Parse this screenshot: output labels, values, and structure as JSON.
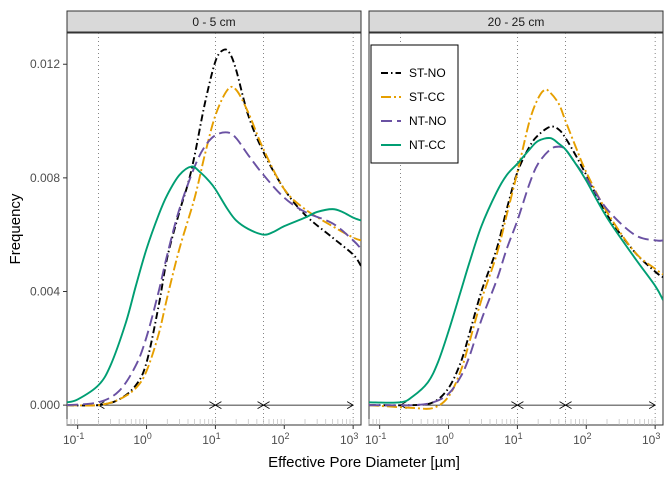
{
  "chart_data": {
    "type": "line",
    "xlabel": "Effective Pore Diameter [µm]",
    "ylabel": "Frequency",
    "x_scale": "log10",
    "xlim": [
      0.07,
      1300
    ],
    "ylim": [
      -0.0007,
      0.0131
    ],
    "x_ticks": [
      {
        "value": 0.1,
        "base": "10",
        "exp": "-1"
      },
      {
        "value": 1,
        "base": "10",
        "exp": "0"
      },
      {
        "value": 10,
        "base": "10",
        "exp": "1"
      },
      {
        "value": 100,
        "base": "10",
        "exp": "2"
      },
      {
        "value": 1000,
        "base": "10",
        "exp": "3"
      }
    ],
    "y_ticks": [
      {
        "value": 0.0,
        "label": "0.000"
      },
      {
        "value": 0.004,
        "label": "0.004"
      },
      {
        "value": 0.008,
        "label": "0.008"
      },
      {
        "value": 0.012,
        "label": "0.012"
      }
    ],
    "reference_lines_x": [
      0.2,
      10,
      50,
      1000
    ],
    "pore_class_arrows": [
      [
        0.2,
        10
      ],
      [
        10,
        50
      ],
      [
        50,
        1000
      ]
    ],
    "grid": false,
    "legend": {
      "panel": "20 - 25 cm",
      "position": "top-left",
      "entries": [
        {
          "name": "ST-NO",
          "color": "#000000",
          "dash": "dashdot"
        },
        {
          "name": "ST-CC",
          "color": "#E69F00",
          "dash": "longdash-dot"
        },
        {
          "name": "NT-NO",
          "color": "#6A51A3",
          "dash": "longdash"
        },
        {
          "name": "NT-CC",
          "color": "#009E73",
          "dash": "solid"
        }
      ]
    },
    "panels": [
      {
        "title": "0 - 5 cm",
        "series": [
          {
            "name": "ST-NO",
            "x": [
              0.07,
              0.2,
              0.4,
              0.7,
              1,
              1.5,
              2,
              3,
              4,
              5,
              7,
              10,
              13,
              16,
              20,
              30,
              50,
              100,
              200,
              500,
              1000,
              1300
            ],
            "y": [
              0.0,
              0.0,
              0.0002,
              0.0007,
              0.0015,
              0.0035,
              0.0052,
              0.0068,
              0.0078,
              0.0088,
              0.0106,
              0.0121,
              0.0125,
              0.0124,
              0.0118,
              0.0102,
              0.0089,
              0.0076,
              0.0067,
              0.0059,
              0.0053,
              0.0049
            ]
          },
          {
            "name": "ST-CC",
            "x": [
              0.07,
              0.2,
              0.4,
              0.7,
              1,
              1.5,
              2,
              3,
              5,
              7,
              10,
              15,
              20,
              30,
              50,
              100,
              200,
              500,
              1000,
              1300
            ],
            "y": [
              0.0,
              0.0,
              0.0002,
              0.0006,
              0.0012,
              0.0025,
              0.0038,
              0.0055,
              0.0073,
              0.0088,
              0.0102,
              0.0111,
              0.0111,
              0.0103,
              0.009,
              0.0076,
              0.0069,
              0.0063,
              0.0059,
              0.0058
            ]
          },
          {
            "name": "NT-NO",
            "x": [
              0.07,
              0.2,
              0.4,
              0.7,
              1,
              1.5,
              2,
              3,
              5,
              7,
              10,
              15,
              20,
              30,
              50,
              100,
              200,
              500,
              1000,
              1300
            ],
            "y": [
              0.0,
              0.0001,
              0.0005,
              0.0014,
              0.0024,
              0.004,
              0.0053,
              0.0069,
              0.0084,
              0.0091,
              0.0095,
              0.0096,
              0.0094,
              0.0088,
              0.0081,
              0.0073,
              0.0068,
              0.0064,
              0.0058,
              0.0055
            ]
          },
          {
            "name": "NT-CC",
            "x": [
              0.07,
              0.1,
              0.2,
              0.3,
              0.5,
              0.7,
              1,
              1.5,
              2,
              3,
              4.5,
              6,
              8,
              10,
              15,
              20,
              30,
              50,
              70,
              100,
              200,
              300,
              500,
              700,
              1000,
              1300
            ],
            "y": [
              0.0001,
              0.0002,
              0.0007,
              0.0014,
              0.0029,
              0.0042,
              0.0055,
              0.0067,
              0.0074,
              0.0081,
              0.0084,
              0.0082,
              0.0079,
              0.0076,
              0.0069,
              0.0065,
              0.0062,
              0.006,
              0.0061,
              0.0063,
              0.0066,
              0.0068,
              0.0069,
              0.0068,
              0.0066,
              0.0065
            ]
          }
        ]
      },
      {
        "title": "20 - 25 cm",
        "series": [
          {
            "name": "ST-NO",
            "x": [
              0.07,
              0.3,
              0.6,
              1,
              1.5,
              2,
              3,
              5,
              7,
              10,
              15,
              20,
              30,
              40,
              50,
              70,
              100,
              200,
              500,
              1000,
              1300
            ],
            "y": [
              0.0,
              0.0,
              0.0001,
              0.0006,
              0.0015,
              0.0025,
              0.004,
              0.0055,
              0.0069,
              0.0082,
              0.0091,
              0.0095,
              0.0098,
              0.0097,
              0.0094,
              0.0088,
              0.0081,
              0.0067,
              0.0054,
              0.0047,
              0.0045
            ]
          },
          {
            "name": "ST-CC",
            "x": [
              0.07,
              0.3,
              0.6,
              1,
              1.5,
              2,
              3,
              5,
              7,
              10,
              15,
              20,
              25,
              30,
              40,
              50,
              70,
              100,
              200,
              500,
              1000,
              1300
            ],
            "y": [
              0.0,
              -0.0001,
              -0.0001,
              0.0003,
              0.0012,
              0.0022,
              0.0037,
              0.0053,
              0.0067,
              0.0082,
              0.01,
              0.0108,
              0.0111,
              0.011,
              0.0106,
              0.01,
              0.0091,
              0.0082,
              0.0068,
              0.0054,
              0.0048,
              0.0046
            ]
          },
          {
            "name": "NT-NO",
            "x": [
              0.07,
              0.3,
              0.6,
              1,
              1.5,
              2,
              3,
              5,
              7,
              10,
              15,
              20,
              30,
              40,
              50,
              70,
              100,
              200,
              500,
              1000,
              1300
            ],
            "y": [
              0.0,
              0.0,
              0.0001,
              0.0004,
              0.001,
              0.0017,
              0.003,
              0.0044,
              0.0055,
              0.0065,
              0.0078,
              0.0085,
              0.009,
              0.0091,
              0.009,
              0.0085,
              0.008,
              0.0069,
              0.006,
              0.0058,
              0.0058
            ]
          },
          {
            "name": "NT-CC",
            "x": [
              0.07,
              0.2,
              0.3,
              0.5,
              0.7,
              1,
              1.5,
              2,
              3,
              5,
              7,
              10,
              15,
              20,
              30,
              40,
              50,
              70,
              100,
              200,
              500,
              1000,
              1300
            ],
            "y": [
              0.0001,
              0.0001,
              0.0003,
              0.0008,
              0.0015,
              0.0026,
              0.004,
              0.005,
              0.0063,
              0.0075,
              0.0081,
              0.0085,
              0.009,
              0.0093,
              0.0094,
              0.0092,
              0.009,
              0.0085,
              0.0079,
              0.0066,
              0.0052,
              0.0042,
              0.0037
            ]
          }
        ]
      }
    ]
  }
}
